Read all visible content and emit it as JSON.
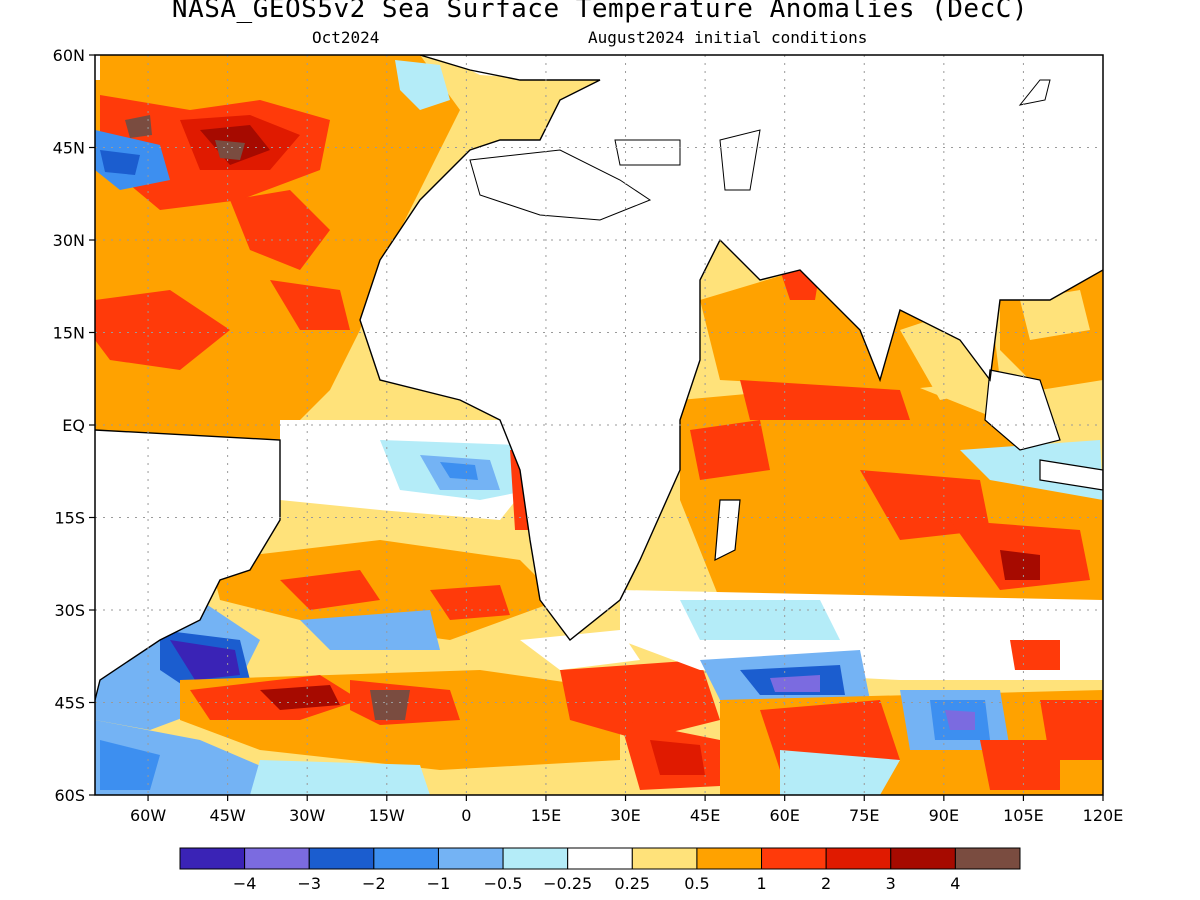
{
  "header": {
    "title": "NASA_GEOS5v2 Sea Surface Temperature Anomalies (DecC)",
    "month": "Oct2024",
    "init": "August2024 initial conditions"
  },
  "map": {
    "lat_range": [
      -60,
      60
    ],
    "lon_range": [
      -70,
      120
    ],
    "lat_ticks": [
      "60N",
      "45N",
      "30N",
      "15N",
      "EQ",
      "15S",
      "30S",
      "45S",
      "60S"
    ],
    "lon_ticks": [
      "60W",
      "45W",
      "30W",
      "15W",
      "0",
      "15E",
      "30E",
      "45E",
      "60E",
      "75E",
      "90E",
      "105E",
      "120E"
    ],
    "gridlines": "dotted",
    "land_color": "#ffffff",
    "coast_color": "#000000"
  },
  "colorbar": {
    "colors": [
      "#3a23b6",
      "#7b6be0",
      "#1b5dcf",
      "#3d8ff0",
      "#74b3f4",
      "#b4ecf8",
      "#ffffff",
      "#ffe27a",
      "#ffa200",
      "#ff3a0a",
      "#e01a00",
      "#a60a00",
      "#7a4c40"
    ],
    "tick_labels": [
      "−4",
      "−3",
      "−2",
      "−1",
      "−0.5",
      "−0.25",
      "0.25",
      "0.5",
      "1",
      "2",
      "3",
      "4"
    ]
  }
}
